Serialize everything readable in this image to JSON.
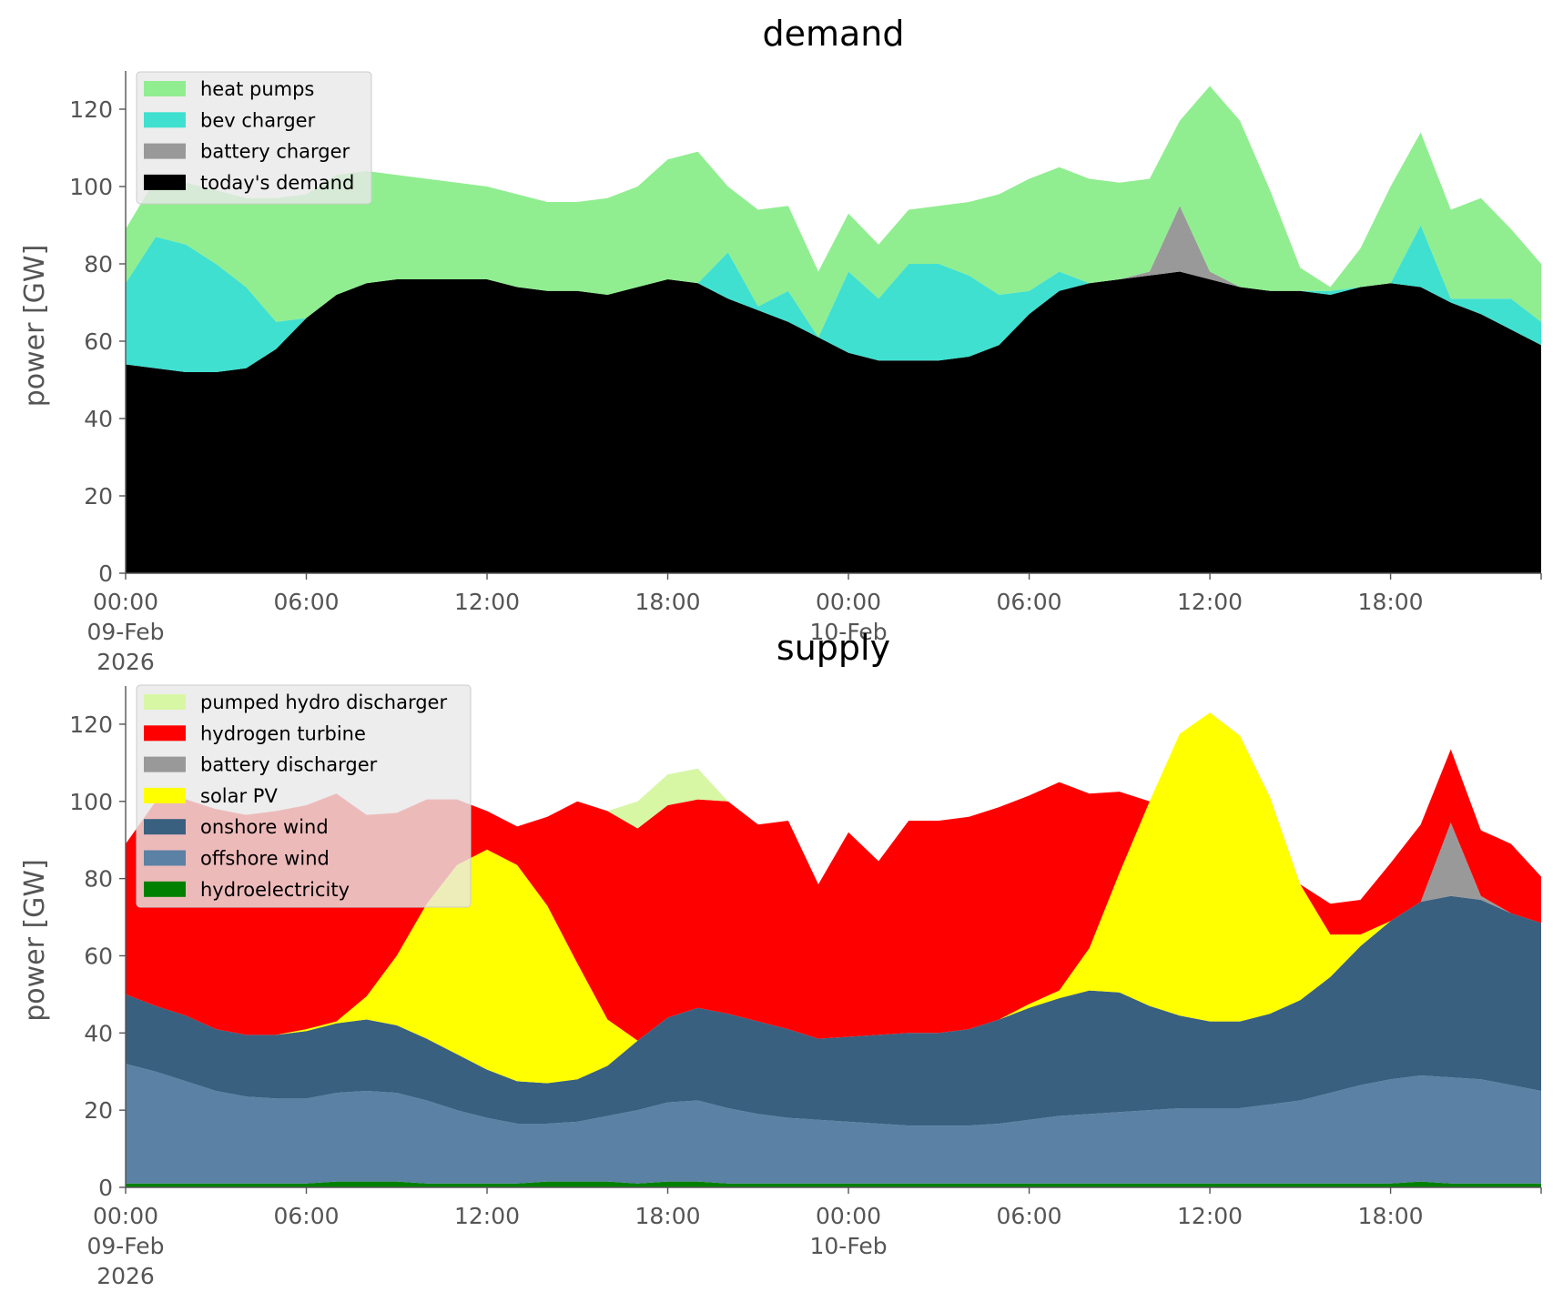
{
  "chart_data": [
    {
      "type": "area",
      "stacked": true,
      "title": "demand",
      "ylabel": "power [GW]",
      "ylim": [
        0,
        128
      ],
      "yticks": [
        0,
        20,
        40,
        60,
        80,
        100,
        120
      ],
      "x_hours": [
        0,
        1,
        2,
        3,
        4,
        5,
        6,
        7,
        8,
        9,
        10,
        11,
        12,
        13,
        14,
        15,
        16,
        17,
        18,
        19,
        20,
        21,
        22,
        23,
        24,
        25,
        26,
        27,
        28,
        29,
        30,
        31,
        32,
        33,
        34,
        35,
        36,
        37,
        38,
        39,
        40,
        41,
        42,
        43,
        44,
        45,
        46,
        47
      ],
      "xlim_hours": [
        0,
        47
      ],
      "xticks": [
        {
          "hour": 0,
          "lines": [
            "00:00",
            "09-Feb",
            "2026"
          ]
        },
        {
          "hour": 6,
          "lines": [
            "06:00"
          ]
        },
        {
          "hour": 12,
          "lines": [
            "12:00"
          ]
        },
        {
          "hour": 18,
          "lines": [
            "18:00"
          ]
        },
        {
          "hour": 24,
          "lines": [
            "00:00",
            "10-Feb"
          ]
        },
        {
          "hour": 30,
          "lines": [
            "06:00"
          ]
        },
        {
          "hour": 36,
          "lines": [
            "12:00"
          ]
        },
        {
          "hour": 42,
          "lines": [
            "18:00"
          ]
        }
      ],
      "legend_position": "upper-left",
      "series": [
        {
          "name": "today's demand",
          "color": "#000000",
          "values": [
            54,
            53,
            52,
            52,
            53,
            58,
            66,
            72,
            75,
            76,
            76,
            76,
            76,
            74,
            73,
            73,
            72,
            74,
            76,
            75,
            71,
            68,
            65,
            61,
            57,
            55,
            55,
            55,
            56,
            59,
            67,
            73,
            75,
            76,
            77,
            78,
            76,
            74,
            73,
            73,
            72,
            74,
            75,
            74,
            70,
            67,
            63,
            59
          ]
        },
        {
          "name": "battery charger",
          "color": "#999999",
          "values": [
            0,
            0,
            0,
            0,
            0,
            0,
            0,
            0,
            0,
            0,
            0,
            0,
            0,
            0,
            0,
            0,
            0,
            0,
            0,
            0,
            0,
            0,
            0,
            0,
            0,
            0,
            0,
            0,
            0,
            0,
            0,
            0,
            0,
            0,
            1,
            17,
            2,
            0,
            0,
            0,
            0,
            0,
            0,
            0,
            0,
            0,
            0,
            0
          ]
        },
        {
          "name": "bev charger",
          "color": "#40e0d0",
          "values": [
            21,
            34,
            33,
            28,
            21,
            7,
            0,
            0,
            0,
            0,
            0,
            0,
            0,
            0,
            0,
            0,
            0,
            0,
            0,
            0,
            12,
            1,
            8,
            0,
            21,
            16,
            25,
            25,
            21,
            13,
            6,
            5,
            0,
            0,
            0,
            0,
            0,
            0,
            0,
            0,
            1,
            0,
            0,
            16,
            1,
            4,
            8,
            6
          ]
        },
        {
          "name": "heat pumps",
          "color": "#90ee90",
          "values": [
            14,
            15,
            16,
            19,
            23,
            32,
            32,
            31,
            29,
            27,
            26,
            25,
            24,
            24,
            23,
            23,
            25,
            26,
            31,
            34,
            17,
            25,
            22,
            17,
            15,
            14,
            14,
            15,
            19,
            26,
            29,
            27,
            27,
            25,
            24,
            22,
            48,
            43,
            26,
            6,
            1,
            10,
            25,
            24,
            23,
            26,
            18,
            15
          ]
        }
      ]
    },
    {
      "type": "area",
      "stacked": true,
      "title": "supply",
      "ylabel": "power [GW]",
      "ylim": [
        0,
        128
      ],
      "yticks": [
        0,
        20,
        40,
        60,
        80,
        100,
        120
      ],
      "x_hours": [
        0,
        1,
        2,
        3,
        4,
        5,
        6,
        7,
        8,
        9,
        10,
        11,
        12,
        13,
        14,
        15,
        16,
        17,
        18,
        19,
        20,
        21,
        22,
        23,
        24,
        25,
        26,
        27,
        28,
        29,
        30,
        31,
        32,
        33,
        34,
        35,
        36,
        37,
        38,
        39,
        40,
        41,
        42,
        43,
        44,
        45,
        46,
        47
      ],
      "xlim_hours": [
        0,
        47
      ],
      "xticks": [
        {
          "hour": 0,
          "lines": [
            "00:00",
            "09-Feb",
            "2026"
          ]
        },
        {
          "hour": 6,
          "lines": [
            "06:00"
          ]
        },
        {
          "hour": 12,
          "lines": [
            "12:00"
          ]
        },
        {
          "hour": 18,
          "lines": [
            "18:00"
          ]
        },
        {
          "hour": 24,
          "lines": [
            "00:00",
            "10-Feb"
          ]
        },
        {
          "hour": 30,
          "lines": [
            "06:00"
          ]
        },
        {
          "hour": 36,
          "lines": [
            "12:00"
          ]
        },
        {
          "hour": 42,
          "lines": [
            "18:00"
          ]
        }
      ],
      "legend_position": "upper-left",
      "series": [
        {
          "name": "hydroelectricity",
          "color": "#008000",
          "values": [
            1,
            1,
            1,
            1,
            1,
            1,
            1,
            1.5,
            1.5,
            1.5,
            1,
            1,
            1,
            1,
            1.5,
            1.5,
            1.5,
            1,
            1.5,
            1.5,
            1,
            1,
            1,
            1,
            1,
            1,
            1,
            1,
            1,
            1,
            1,
            1,
            1,
            1,
            1,
            1,
            1,
            1,
            1,
            1,
            1,
            1,
            1,
            1.5,
            1,
            1,
            1,
            1
          ]
        },
        {
          "name": "offshore wind",
          "color": "#5b81a4",
          "values": [
            31,
            29,
            26.5,
            24,
            22.5,
            22,
            22,
            23,
            23.5,
            23,
            21.5,
            19,
            17,
            15.5,
            15,
            15.5,
            17,
            19,
            20.5,
            21,
            19.5,
            18,
            17,
            16.5,
            16,
            15.5,
            15,
            15,
            15,
            15.5,
            16.5,
            17.5,
            18,
            18.5,
            19,
            19.5,
            19.5,
            19.5,
            20.5,
            21.5,
            23.5,
            25.5,
            27,
            27.5,
            27.5,
            27,
            25.5,
            24
          ]
        },
        {
          "name": "onshore wind",
          "color": "#3a6080",
          "values": [
            18,
            17,
            17,
            16,
            16,
            16.5,
            17.5,
            18,
            18.5,
            17.5,
            16,
            14.5,
            12.5,
            11,
            10.5,
            11,
            13,
            18,
            22,
            24,
            24.5,
            24,
            23,
            21,
            22,
            23,
            24,
            24,
            25,
            27,
            29,
            30.5,
            32,
            31,
            27,
            24,
            22.5,
            22.5,
            23.5,
            26,
            30,
            36,
            41,
            45,
            47,
            46.5,
            44.5,
            43.5
          ]
        },
        {
          "name": "solar PV",
          "color": "#ffff00",
          "values": [
            0,
            0,
            0,
            0,
            0,
            0,
            0.5,
            0.5,
            6,
            18,
            35,
            49,
            57,
            56,
            46,
            30,
            12,
            0,
            0,
            0,
            0,
            0,
            0,
            0,
            0,
            0,
            0,
            0,
            0,
            0,
            1,
            2,
            11,
            31,
            53,
            73,
            80,
            74,
            56,
            30,
            11,
            3,
            0,
            0,
            0,
            0,
            0,
            0
          ]
        },
        {
          "name": "battery discharger",
          "color": "#999999",
          "values": [
            0,
            0,
            0,
            0,
            0,
            0,
            0,
            0,
            0,
            0,
            0,
            0,
            0,
            0,
            0,
            0,
            0,
            0,
            0,
            0,
            0,
            0,
            0,
            0,
            0,
            0,
            0,
            0,
            0,
            0,
            0,
            0,
            0,
            0,
            0,
            0,
            0,
            0,
            0,
            0,
            0,
            0,
            0,
            0,
            19,
            1,
            0,
            0
          ]
        },
        {
          "name": "hydrogen turbine",
          "color": "#ff0000",
          "values": [
            39,
            53,
            56,
            57,
            57,
            58,
            58,
            59,
            47,
            37,
            27,
            17,
            10,
            10,
            23,
            42,
            54,
            55,
            55,
            54,
            55,
            51,
            54,
            40,
            53,
            45,
            55,
            55,
            55,
            55,
            54,
            54,
            40,
            21,
            0,
            0,
            0,
            0,
            0,
            0,
            8,
            9,
            15,
            20,
            19,
            17,
            18,
            12
          ]
        },
        {
          "name": "pumped hydro discharger",
          "color": "#d7f7a5",
          "values": [
            0,
            0,
            0,
            0,
            0,
            0,
            0,
            0,
            0,
            0,
            0,
            0,
            0,
            0,
            0,
            0,
            0,
            7,
            8,
            8,
            0,
            0,
            0,
            0,
            0,
            0,
            0,
            0,
            0,
            0,
            0,
            0,
            0,
            0,
            0,
            0,
            0,
            0,
            0,
            0,
            0,
            0,
            0,
            0,
            0,
            0,
            0,
            0
          ]
        }
      ]
    }
  ]
}
